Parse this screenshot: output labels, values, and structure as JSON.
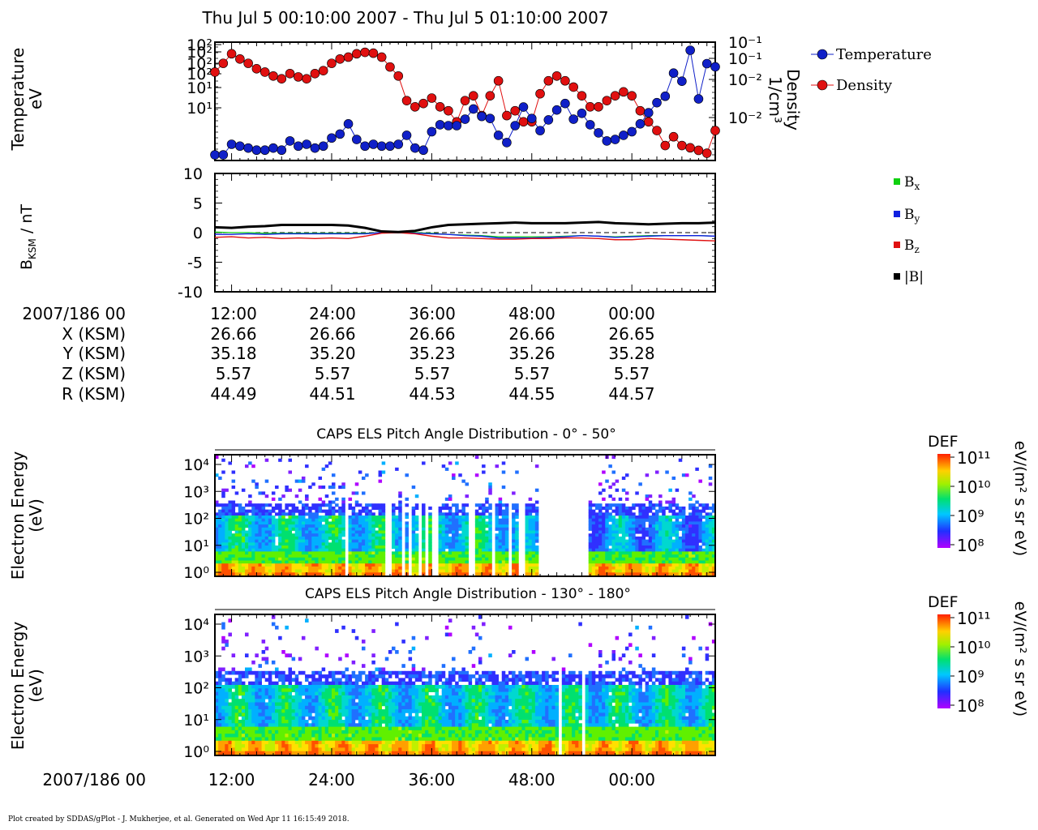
{
  "header": {
    "title": "Thu Jul 5 00:10:00 2007 - Thu Jul 5 01:10:00 2007"
  },
  "footer": {
    "text": "Plot created by SDDAS/gPlot - J. Mukherjee, et al.  Generated on Wed Apr 11 16:15:49 2018."
  },
  "colors": {
    "temperature": "#1020c8",
    "density": "#e01010",
    "bx": "#10d010",
    "by": "#1020e0",
    "bz": "#e01010",
    "bmag": "#000000"
  },
  "chart_data": [
    {
      "type": "scatter",
      "panel": "plasma",
      "ylabel_lines": [
        "Temperature",
        "eV"
      ],
      "y2label_lines": [
        "Density",
        "1/cm³"
      ],
      "left_ticks": [
        "10²",
        "10²",
        "10²",
        "10²",
        "10¹",
        "10¹"
      ],
      "right_ticks": [
        "10⁻¹",
        "10⁻¹",
        "10⁻²",
        "10⁻²"
      ],
      "log_scale": true,
      "legend": {
        "placement": "right",
        "entries": [
          "Temperature",
          "Density"
        ]
      },
      "x_minutes": [
        10,
        11,
        12,
        13,
        14,
        15,
        16,
        17,
        18,
        19,
        20,
        21,
        22,
        23,
        24,
        25,
        26,
        27,
        28,
        29,
        30,
        31,
        32,
        33,
        34,
        35,
        36,
        37,
        38,
        39,
        40,
        41,
        42,
        43,
        44,
        45,
        46,
        47,
        48,
        49,
        50,
        51,
        52,
        53,
        54,
        55,
        56,
        57,
        58,
        59,
        60,
        61,
        62,
        63,
        64,
        65,
        66,
        67,
        68,
        69,
        70
      ],
      "series": [
        {
          "name": "Temperature",
          "values": [
            1.1,
            1.1,
            1.6,
            1.5,
            1.4,
            1.3,
            1.3,
            1.4,
            1.3,
            1.8,
            1.5,
            1.6,
            1.4,
            1.5,
            2.0,
            2.3,
            3.3,
            1.9,
            1.5,
            1.6,
            1.5,
            1.5,
            1.6,
            2.2,
            1.4,
            1.3,
            2.5,
            3.2,
            3.1,
            3.1,
            3.9,
            5.6,
            4.3,
            4.0,
            2.2,
            1.7,
            3.1,
            6.0,
            4.0,
            2.6,
            3.8,
            5.4,
            6.8,
            3.9,
            4.8,
            3.2,
            2.4,
            1.8,
            1.9,
            2.2,
            2.5,
            3.3,
            4.9,
            7.0,
            8.8,
            20,
            15,
            45,
            8,
            28,
            25
          ]
        },
        {
          "name": "Density",
          "values": [
            0.3,
            0.45,
            0.7,
            0.55,
            0.45,
            0.35,
            0.3,
            0.25,
            0.22,
            0.28,
            0.24,
            0.22,
            0.28,
            0.32,
            0.45,
            0.55,
            0.6,
            0.7,
            0.75,
            0.72,
            0.6,
            0.38,
            0.25,
            0.08,
            0.06,
            0.07,
            0.09,
            0.06,
            0.05,
            0.03,
            0.08,
            0.1,
            0.04,
            0.1,
            0.2,
            0.04,
            0.05,
            0.03,
            0.03,
            0.11,
            0.2,
            0.25,
            0.2,
            0.15,
            0.1,
            0.06,
            0.06,
            0.08,
            0.1,
            0.12,
            0.1,
            0.05,
            0.03,
            0.02,
            0.01,
            0.015,
            0.01,
            0.009,
            0.008,
            0.007,
            0.02
          ]
        }
      ]
    },
    {
      "type": "line",
      "panel": "magnetic-field",
      "ylabel": "B",
      "ylabel_sub": "KSM",
      "ylabel_unit": " / nT",
      "ylim": [
        -10,
        10
      ],
      "yticks": [
        -10,
        -5,
        0,
        5,
        10
      ],
      "ytick_labels": [
        "-10",
        "-5",
        "0",
        "5",
        "10"
      ],
      "legend": {
        "placement": "right",
        "entries": [
          {
            "base": "B",
            "sub": "x"
          },
          {
            "base": "B",
            "sub": "y"
          },
          {
            "base": "B",
            "sub": "z"
          },
          {
            "base": "|B|",
            "sub": ""
          }
        ]
      },
      "x_minutes": [
        10,
        12,
        14,
        16,
        18,
        20,
        22,
        24,
        26,
        28,
        30,
        32,
        34,
        36,
        38,
        40,
        42,
        44,
        46,
        48,
        50,
        52,
        54,
        56,
        58,
        60,
        62,
        64,
        66,
        68,
        70
      ],
      "series": [
        {
          "name": "Bx",
          "values": [
            0.1,
            0.0,
            0.0,
            -0.1,
            -0.1,
            -0.1,
            -0.1,
            -0.1,
            -0.1,
            -0.1,
            0,
            0,
            0,
            -0.1,
            -0.3,
            -0.4,
            -0.5,
            -0.7,
            -0.7,
            -0.7,
            -0.7,
            -0.6,
            -0.5,
            -0.6,
            -0.7,
            -0.6,
            -0.5,
            -0.5,
            -0.5,
            -0.5,
            -0.6
          ]
        },
        {
          "name": "By",
          "values": [
            -0.3,
            -0.3,
            -0.2,
            -0.3,
            -0.2,
            -0.2,
            -0.2,
            -0.2,
            -0.2,
            -0.2,
            0,
            0,
            -0.1,
            -0.2,
            -0.3,
            -0.5,
            -0.6,
            -0.9,
            -0.9,
            -0.9,
            -0.8,
            -0.7,
            -0.5,
            -0.6,
            -0.8,
            -0.7,
            -0.6,
            -0.5,
            -0.5,
            -0.5,
            -0.6
          ]
        },
        {
          "name": "Bz",
          "values": [
            -0.8,
            -0.7,
            -0.9,
            -0.8,
            -1.0,
            -0.9,
            -1.0,
            -0.9,
            -1.0,
            -0.6,
            -0.1,
            0,
            -0.2,
            -0.6,
            -0.9,
            -0.9,
            -1.0,
            -1.1,
            -1.1,
            -1.0,
            -1.0,
            -0.9,
            -0.9,
            -1.0,
            -1.2,
            -1.2,
            -1.0,
            -1.1,
            -1.2,
            -1.3,
            -1.4
          ]
        },
        {
          "name": "|B|",
          "values": [
            0.9,
            0.8,
            1.0,
            1.1,
            1.3,
            1.3,
            1.3,
            1.3,
            1.2,
            0.8,
            0.2,
            0.1,
            0.3,
            0.9,
            1.3,
            1.4,
            1.5,
            1.6,
            1.7,
            1.6,
            1.6,
            1.6,
            1.7,
            1.8,
            1.6,
            1.5,
            1.4,
            1.5,
            1.6,
            1.6,
            1.7
          ]
        }
      ]
    },
    {
      "type": "table",
      "panel": "ephemeris",
      "rows": [
        {
          "label": "2007/186 00",
          "values": [
            "12:00",
            "24:00",
            "36:00",
            "48:00",
            "00:00"
          ]
        },
        {
          "label": "X (KSM)",
          "values": [
            "26.66",
            "26.66",
            "26.66",
            "26.66",
            "26.65"
          ]
        },
        {
          "label": "Y (KSM)",
          "values": [
            "35.18",
            "35.20",
            "35.23",
            "35.26",
            "35.28"
          ]
        },
        {
          "label": "Z (KSM)",
          "values": [
            "5.57",
            "5.57",
            "5.57",
            "5.57",
            "5.57"
          ]
        },
        {
          "label": "R (KSM)",
          "values": [
            "44.49",
            "44.51",
            "44.53",
            "44.55",
            "44.57"
          ]
        }
      ]
    },
    {
      "type": "heatmap",
      "panel": "els-0-50",
      "title": "CAPS ELS Pitch Angle Distribution - 0° - 50°",
      "ylabel_lines": [
        "Electron Energy",
        "(eV)"
      ],
      "yticks": [
        "10⁴",
        "10³",
        "10²",
        "10¹",
        "10⁰"
      ],
      "colorbar": {
        "title": "DEF",
        "unit": "eV/(m² s sr eV)",
        "ticks": [
          "10¹¹",
          "10¹⁰",
          "10⁹",
          "10⁸"
        ]
      },
      "gaps_minutes": [
        [
          25.6,
          25.9
        ],
        [
          30.5,
          31.4
        ],
        [
          32.5,
          32.8
        ],
        [
          33.3,
          33.6
        ],
        [
          34.4,
          34.8
        ],
        [
          35.2,
          35.6
        ],
        [
          36.1,
          36.8
        ],
        [
          40.6,
          41.0
        ],
        [
          43.4,
          43.7
        ],
        [
          45.1,
          45.4
        ],
        [
          46.6,
          47.2
        ],
        [
          48.8,
          54.9
        ],
        [
          59.9,
          60.1
        ]
      ]
    },
    {
      "type": "heatmap",
      "panel": "els-130-180",
      "title": "CAPS ELS Pitch Angle Distribution - 130° - 180°",
      "ylabel_lines": [
        "Electron Energy",
        "(eV)"
      ],
      "yticks": [
        "10⁴",
        "10³",
        "10²",
        "10¹",
        "10⁰"
      ],
      "colorbar": {
        "title": "DEF",
        "unit": "eV/(m² s sr eV)",
        "ticks": [
          "10¹¹",
          "10¹⁰",
          "10⁹",
          "10⁸"
        ]
      },
      "gaps_minutes": [
        [
          51.2,
          51.4
        ],
        [
          54.1,
          54.4
        ]
      ],
      "xaxis": {
        "label": "2007/186 00",
        "ticks": [
          "12:00",
          "24:00",
          "36:00",
          "48:00",
          "00:00"
        ]
      }
    }
  ]
}
